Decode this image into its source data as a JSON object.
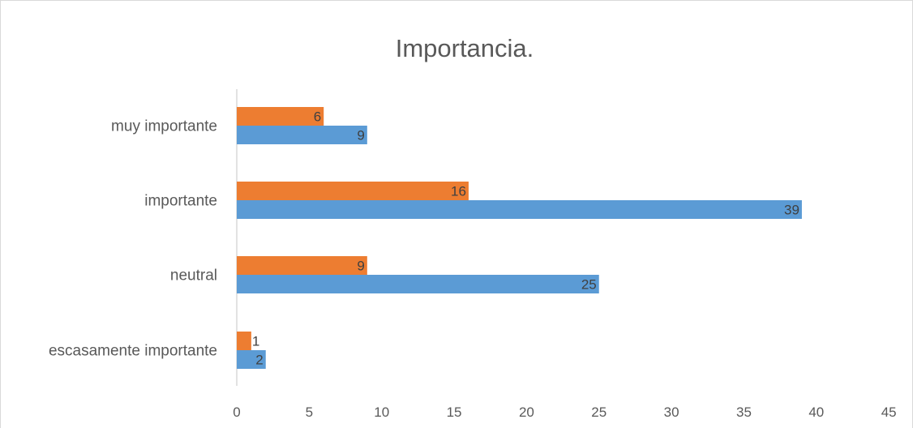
{
  "chart_data": {
    "type": "bar",
    "orientation": "horizontal",
    "title": "Importancia.",
    "categories": [
      "escasamente importante",
      "neutral",
      "importante",
      "muy importante"
    ],
    "series": [
      {
        "color": "#5b9bd5",
        "values": [
          2,
          25,
          39,
          9
        ]
      },
      {
        "color": "#ed7d31",
        "values": [
          1,
          9,
          16,
          6
        ]
      }
    ],
    "xlim": [
      0,
      45
    ],
    "xticks": [
      0,
      5,
      10,
      15,
      20,
      25,
      30,
      35,
      40,
      45
    ],
    "xlabel": "",
    "ylabel": "",
    "grid": false,
    "legend": "none",
    "data_labels": true,
    "axis_color": "#d9d9d9",
    "text_color": "#595959"
  }
}
